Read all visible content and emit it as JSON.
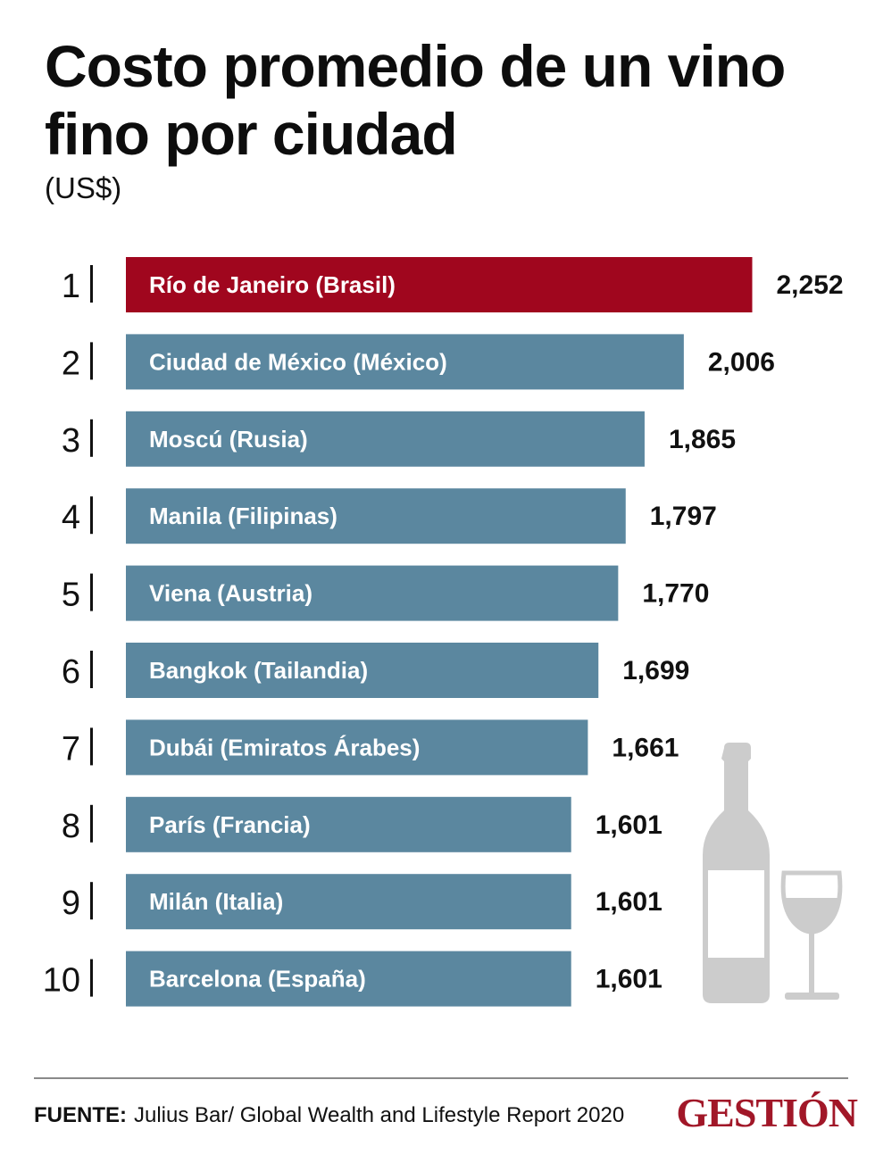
{
  "chart_data": {
    "type": "bar",
    "orientation": "horizontal",
    "title": "Costo promedio de un vino fino por ciudad",
    "subtitle": "(US$)",
    "ranks": [
      "1",
      "2",
      "3",
      "4",
      "5",
      "6",
      "7",
      "8",
      "9",
      "10"
    ],
    "categories": [
      "Río de Janeiro (Brasil)",
      "Ciudad de México (México)",
      "Moscú (Rusia)",
      "Manila (Filipinas)",
      "Viena (Austria)",
      "Bangkok (Tailandia)",
      "Dubái (Emiratos Árabes)",
      "París (Francia)",
      "Milán (Italia)",
      "Barcelona (España)"
    ],
    "values": [
      2252,
      2006,
      1865,
      1797,
      1770,
      1699,
      1661,
      1601,
      1601,
      1601
    ],
    "value_labels": [
      "2,252",
      "2,006",
      "1,865",
      "1,797",
      "1,770",
      "1,699",
      "1,661",
      "1,601",
      "1,601",
      "1,601"
    ],
    "highlight_index": 0,
    "colors": {
      "highlight": "#a0061e",
      "bar": "#5b879f",
      "bar_text": "#ffffff",
      "illustration": "#cccccc"
    }
  },
  "footer": {
    "source_label": "FUENTE:",
    "source_text": "Julius Bar/ Global Wealth and Lifestyle Report 2020"
  },
  "brand": "GESTIÓN",
  "decor": {
    "illustration": [
      "wine-bottle-icon",
      "wine-glass-icon"
    ]
  }
}
